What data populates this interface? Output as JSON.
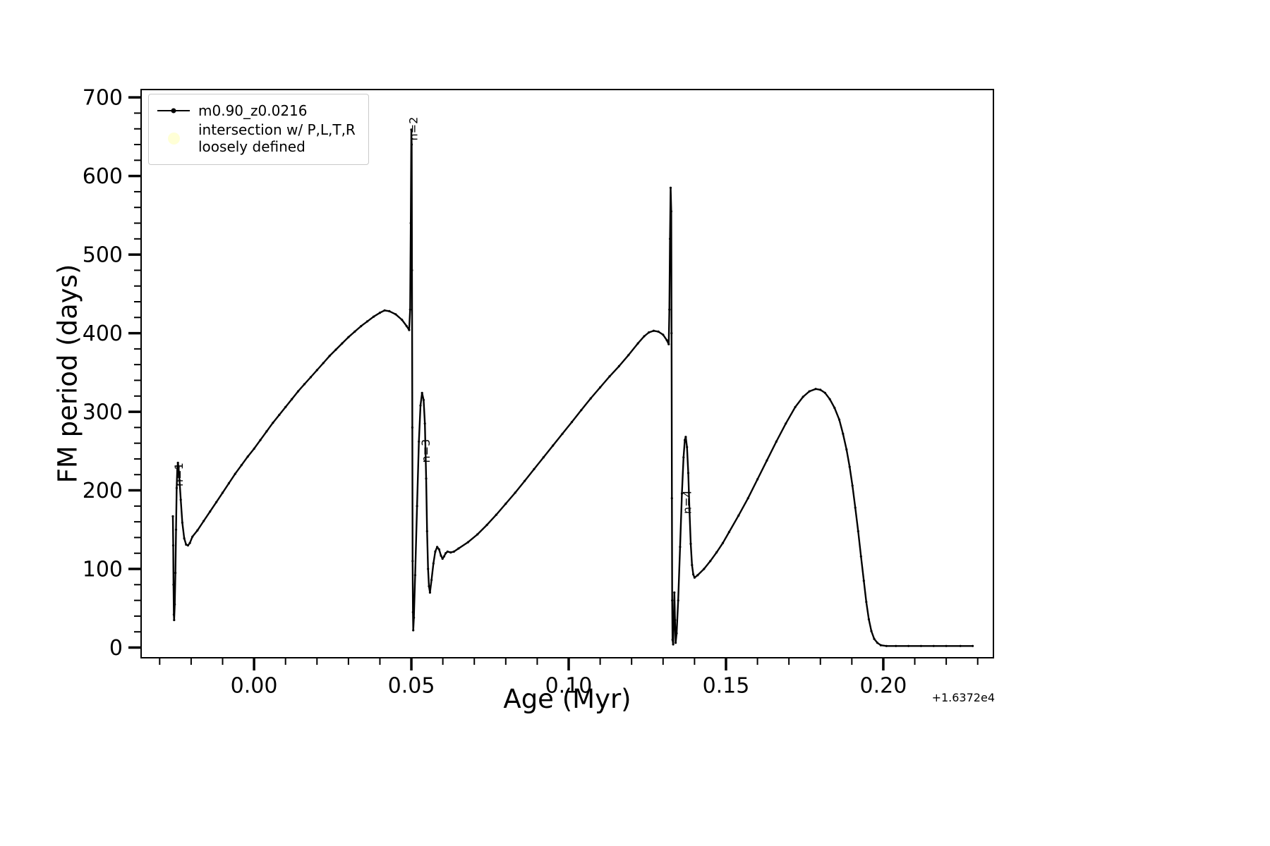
{
  "chart_data": {
    "type": "line",
    "title": "",
    "xlabel": "Age (Myr)",
    "ylabel": "FM period (days)",
    "x_offset_text": "+1.6372e4",
    "xlim": [
      -0.0359,
      0.235
    ],
    "ylim": [
      -13,
      710
    ],
    "grid": false,
    "xticks": {
      "major": [
        0.0,
        0.05,
        0.1,
        0.15,
        0.2
      ],
      "labels": [
        "0.00",
        "0.05",
        "0.10",
        "0.15",
        "0.20"
      ],
      "minor_step": 0.01
    },
    "yticks": {
      "major": [
        0,
        100,
        200,
        300,
        400,
        500,
        600,
        700
      ],
      "labels": [
        "0",
        "100",
        "200",
        "300",
        "400",
        "500",
        "600",
        "700"
      ],
      "minor_step": 20
    },
    "legend": {
      "position": "upper-left",
      "entries": [
        {
          "type": "line-marker",
          "color": "#000000",
          "label": "m0.90_z0.0216"
        },
        {
          "type": "dot",
          "color": "#ffffd6",
          "label_lines": [
            "intersection w/ P,L,T,R",
            "loosely defined"
          ]
        }
      ]
    },
    "annotations": [
      {
        "label": "n=1",
        "x": -0.024,
        "y": 205,
        "rotation": -90
      },
      {
        "label": "n=2",
        "x": 0.0505,
        "y": 645,
        "rotation": -90
      },
      {
        "label": "n=3",
        "x": 0.0545,
        "y": 235,
        "rotation": -90
      },
      {
        "label": "n=4",
        "x": 0.1376,
        "y": 170,
        "rotation": -90
      }
    ],
    "series": [
      {
        "name": "m0.90_z0.0216",
        "color": "#000000",
        "marker": "point",
        "points": [
          [
            -0.0258,
            167
          ],
          [
            -0.0257,
            130
          ],
          [
            -0.0256,
            80
          ],
          [
            -0.0255,
            42
          ],
          [
            -0.0254,
            35
          ],
          [
            -0.0252,
            55
          ],
          [
            -0.025,
            95
          ],
          [
            -0.0248,
            150
          ],
          [
            -0.0246,
            203
          ],
          [
            -0.0244,
            228
          ],
          [
            -0.0242,
            235
          ],
          [
            -0.024,
            229
          ],
          [
            -0.0237,
            213
          ],
          [
            -0.0233,
            188
          ],
          [
            -0.0228,
            159
          ],
          [
            -0.0222,
            139
          ],
          [
            -0.0216,
            131
          ],
          [
            -0.021,
            130
          ],
          [
            -0.0204,
            133
          ],
          [
            -0.0196,
            141
          ],
          [
            -0.018,
            149
          ],
          [
            -0.016,
            161
          ],
          [
            -0.014,
            173
          ],
          [
            -0.012,
            185
          ],
          [
            -0.01,
            197
          ],
          [
            -0.008,
            209
          ],
          [
            -0.006,
            221
          ],
          [
            -0.004,
            232
          ],
          [
            -0.002,
            243
          ],
          [
            0.0,
            253
          ],
          [
            0.002,
            264
          ],
          [
            0.004,
            275
          ],
          [
            0.006,
            286
          ],
          [
            0.008,
            296
          ],
          [
            0.01,
            306
          ],
          [
            0.012,
            316
          ],
          [
            0.014,
            326
          ],
          [
            0.016,
            335
          ],
          [
            0.018,
            344
          ],
          [
            0.02,
            353
          ],
          [
            0.022,
            362
          ],
          [
            0.024,
            371
          ],
          [
            0.026,
            379
          ],
          [
            0.028,
            387
          ],
          [
            0.03,
            395
          ],
          [
            0.032,
            402
          ],
          [
            0.034,
            409
          ],
          [
            0.036,
            415
          ],
          [
            0.038,
            421
          ],
          [
            0.04,
            426
          ],
          [
            0.0415,
            429
          ],
          [
            0.043,
            428
          ],
          [
            0.045,
            424
          ],
          [
            0.047,
            417
          ],
          [
            0.0485,
            409
          ],
          [
            0.0493,
            404
          ],
          [
            0.0496,
            430
          ],
          [
            0.0498,
            540
          ],
          [
            0.05,
            659
          ],
          [
            0.0501,
            640
          ],
          [
            0.0502,
            480
          ],
          [
            0.0503,
            280
          ],
          [
            0.0504,
            110
          ],
          [
            0.0505,
            45
          ],
          [
            0.0506,
            22
          ],
          [
            0.0508,
            38
          ],
          [
            0.0512,
            92
          ],
          [
            0.0518,
            180
          ],
          [
            0.0524,
            262
          ],
          [
            0.0529,
            308
          ],
          [
            0.0534,
            324
          ],
          [
            0.0539,
            315
          ],
          [
            0.0543,
            285
          ],
          [
            0.0547,
            215
          ],
          [
            0.055,
            148
          ],
          [
            0.0553,
            100
          ],
          [
            0.0556,
            78
          ],
          [
            0.0559,
            70
          ],
          [
            0.0564,
            86
          ],
          [
            0.057,
            107
          ],
          [
            0.0576,
            122
          ],
          [
            0.0582,
            128
          ],
          [
            0.0588,
            125
          ],
          [
            0.0594,
            117
          ],
          [
            0.0599,
            113
          ],
          [
            0.0604,
            116
          ],
          [
            0.0609,
            120
          ],
          [
            0.0615,
            122
          ],
          [
            0.0625,
            121
          ],
          [
            0.0635,
            122
          ],
          [
            0.065,
            126
          ],
          [
            0.068,
            134
          ],
          [
            0.071,
            144
          ],
          [
            0.074,
            156
          ],
          [
            0.077,
            169
          ],
          [
            0.08,
            183
          ],
          [
            0.083,
            197
          ],
          [
            0.086,
            212
          ],
          [
            0.089,
            227
          ],
          [
            0.092,
            242
          ],
          [
            0.095,
            257
          ],
          [
            0.098,
            272
          ],
          [
            0.101,
            287
          ],
          [
            0.104,
            302
          ],
          [
            0.107,
            317
          ],
          [
            0.11,
            331
          ],
          [
            0.113,
            345
          ],
          [
            0.116,
            358
          ],
          [
            0.119,
            372
          ],
          [
            0.122,
            387
          ],
          [
            0.124,
            396
          ],
          [
            0.1255,
            401
          ],
          [
            0.127,
            403
          ],
          [
            0.1285,
            402
          ],
          [
            0.13,
            398
          ],
          [
            0.1312,
            391
          ],
          [
            0.1318,
            386
          ],
          [
            0.132,
            430
          ],
          [
            0.1322,
            520
          ],
          [
            0.1324,
            585
          ],
          [
            0.1326,
            555
          ],
          [
            0.1327,
            400
          ],
          [
            0.1328,
            190
          ],
          [
            0.1329,
            60
          ],
          [
            0.133,
            10
          ],
          [
            0.1332,
            4
          ],
          [
            0.1334,
            30
          ],
          [
            0.1336,
            70
          ],
          [
            0.1338,
            35
          ],
          [
            0.134,
            6
          ],
          [
            0.1343,
            18
          ],
          [
            0.1348,
            60
          ],
          [
            0.1354,
            128
          ],
          [
            0.136,
            196
          ],
          [
            0.1365,
            242
          ],
          [
            0.1369,
            264
          ],
          [
            0.1372,
            268
          ],
          [
            0.1376,
            255
          ],
          [
            0.138,
            222
          ],
          [
            0.1384,
            175
          ],
          [
            0.1388,
            132
          ],
          [
            0.1392,
            105
          ],
          [
            0.1396,
            93
          ],
          [
            0.14,
            89
          ],
          [
            0.141,
            92
          ],
          [
            0.143,
            100
          ],
          [
            0.145,
            110
          ],
          [
            0.147,
            121
          ],
          [
            0.149,
            133
          ],
          [
            0.151,
            147
          ],
          [
            0.154,
            168
          ],
          [
            0.157,
            190
          ],
          [
            0.16,
            214
          ],
          [
            0.163,
            238
          ],
          [
            0.166,
            262
          ],
          [
            0.169,
            285
          ],
          [
            0.172,
            306
          ],
          [
            0.1745,
            319
          ],
          [
            0.1765,
            326
          ],
          [
            0.1785,
            329
          ],
          [
            0.18,
            328
          ],
          [
            0.1815,
            324
          ],
          [
            0.183,
            316
          ],
          [
            0.1845,
            305
          ],
          [
            0.186,
            290
          ],
          [
            0.1872,
            272
          ],
          [
            0.1883,
            252
          ],
          [
            0.1893,
            230
          ],
          [
            0.1902,
            206
          ],
          [
            0.1911,
            178
          ],
          [
            0.192,
            148
          ],
          [
            0.1929,
            116
          ],
          [
            0.1938,
            85
          ],
          [
            0.1946,
            58
          ],
          [
            0.1954,
            36
          ],
          [
            0.1962,
            21
          ],
          [
            0.1971,
            11
          ],
          [
            0.1981,
            6
          ],
          [
            0.1992,
            3
          ],
          [
            0.201,
            2
          ],
          [
            0.204,
            2
          ],
          [
            0.208,
            2
          ],
          [
            0.212,
            2
          ],
          [
            0.216,
            2
          ],
          [
            0.22,
            2
          ],
          [
            0.2245,
            2
          ],
          [
            0.2284,
            2
          ]
        ]
      }
    ]
  }
}
